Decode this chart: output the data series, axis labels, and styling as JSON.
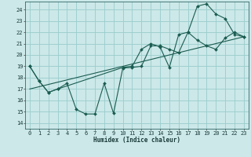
{
  "xlabel": "Humidex (Indice chaleur)",
  "bg_color": "#cce8e8",
  "grid_color": "#99cccc",
  "line_color": "#1a5c50",
  "xlim": [
    -0.5,
    23.5
  ],
  "ylim": [
    13.5,
    24.7
  ],
  "xticks": [
    0,
    1,
    2,
    3,
    4,
    5,
    6,
    7,
    8,
    9,
    10,
    11,
    12,
    13,
    14,
    15,
    16,
    17,
    18,
    19,
    20,
    21,
    22,
    23
  ],
  "yticks": [
    14,
    15,
    16,
    17,
    18,
    19,
    20,
    21,
    22,
    23,
    24
  ],
  "line1_x": [
    0,
    1,
    2,
    3,
    4,
    5,
    6,
    7,
    8,
    9,
    10,
    11,
    12,
    13,
    14,
    15,
    16,
    17,
    18,
    19,
    20,
    21,
    22,
    23
  ],
  "line1_y": [
    19.0,
    17.7,
    16.7,
    17.0,
    17.5,
    15.2,
    14.8,
    14.8,
    17.5,
    14.85,
    18.85,
    18.9,
    19.0,
    20.8,
    20.8,
    20.5,
    20.2,
    22.0,
    21.3,
    20.8,
    20.5,
    21.5,
    22.0,
    21.6
  ],
  "line2_x": [
    0,
    23
  ],
  "line2_y": [
    17.0,
    21.6
  ],
  "line3_x": [
    0,
    1,
    2,
    3,
    10,
    11,
    12,
    13,
    14,
    15,
    16,
    17,
    18,
    19,
    20,
    21,
    22,
    23
  ],
  "line3_y": [
    19.0,
    17.7,
    16.7,
    17.0,
    18.9,
    19.0,
    20.5,
    21.0,
    20.7,
    18.9,
    21.8,
    22.0,
    24.3,
    24.5,
    23.6,
    23.2,
    21.8,
    21.6
  ]
}
